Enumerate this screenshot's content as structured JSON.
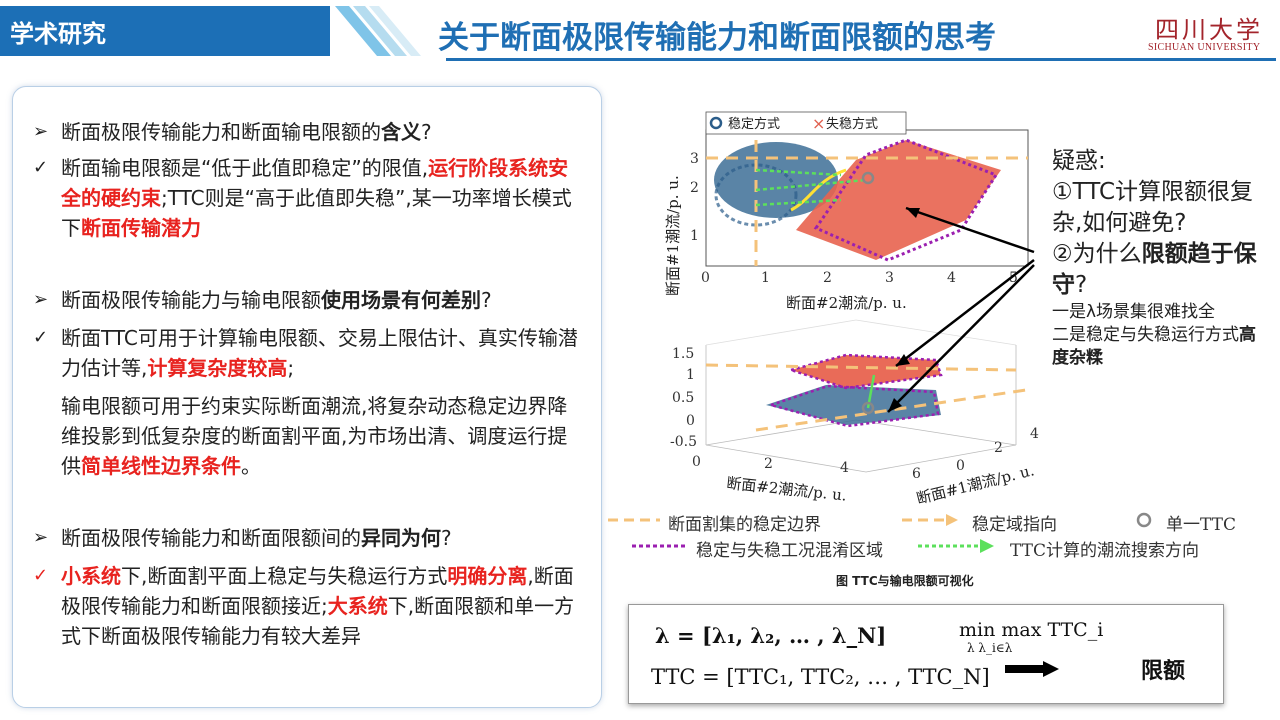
{
  "header": {
    "tag": "学术研究",
    "title": "关于断面极限传输能力和断面限额的思考",
    "logo_cn": "四川大学",
    "logo_en": "SICHUAN UNIVERSITY"
  },
  "left": {
    "b1_pre": "断面极限传输能力和断面输电限额的",
    "b1_bold": "含义",
    "b1_post": "?",
    "c1_pre": "断面输电限额是“低于此值即稳定”的限值,",
    "c1_red1": "运行阶段系统安全的硬约束",
    "c1_mid": ";TTC则是“高于此值即失稳”,某一功率增长模式下",
    "c1_red2": "断面传输潜力",
    "b2_pre": "断面极限传输能力与输电限额",
    "b2_bold": "使用场景有何差别",
    "b2_post": "?",
    "c2_pre": "断面TTC可用于计算输电限额、交易上限估计、真实传输潜力估计等,",
    "c2_red": "计算复杂度较高",
    "c2_post": ";",
    "p2_pre": "输电限额可用于约束实际断面潮流,将复杂动态稳定边界降维投影到低复杂度的断面割平面,为市场出清、调度运行提供",
    "p2_red": "简单线性边界条件",
    "p2_post": "。",
    "b3_pre": "断面极限传输能力和断面限额间的",
    "b3_bold": "异同为何",
    "b3_post": "?",
    "c3_red1": "小系统",
    "c3_mid1": "下,断面割平面上稳定与失稳运行方式",
    "c3_red2": "明确分离",
    "c3_mid2": ",断面极限传输能力和断面限额接近;",
    "c3_red3": "大系统",
    "c3_post": "下,断面限额和单一方式下断面极限传输能力有较大差异"
  },
  "figure": {
    "legend_top_stable": "稳定方式",
    "legend_top_unstable": "失稳方式",
    "top_ylabel": "断面#1潮流/p. u.",
    "top_xlabel": "断面#2潮流/p. u.",
    "top_xticks": [
      "0",
      "1",
      "2",
      "3",
      "4",
      "5"
    ],
    "top_yticks": [
      "1",
      "2",
      "3"
    ],
    "bottom_zticks": [
      "1.5",
      "1",
      "0.5",
      "0",
      "-0.5"
    ],
    "bottom_xticks": [
      "0",
      "2",
      "4",
      "6"
    ],
    "bottom_yticks": [
      "0",
      "2",
      "4"
    ],
    "bottom_xlabel": "断面#2潮流/p. u.",
    "bottom_ylabel": "断面#1潮流/p. u.",
    "caption": "图 TTC与输电限额可视化"
  },
  "legend": {
    "boundary": "断面割集的稳定边界",
    "direction": "稳定域指向",
    "single": "单一TTC",
    "mixed": "稳定与失稳工况混淆区域",
    "search": "TTC计算的潮流搜索方向"
  },
  "right": {
    "q": "疑惑:",
    "q1": "①TTC计算限额很复杂,如何避免?",
    "q2_pre": "②为什么",
    "q2_bold": "限额趋于保守",
    "q2_post": "?",
    "a1": "一是λ场景集很难找全",
    "a2_pre": "二是稳定与失稳运行方式",
    "a2_bold": "高度杂糅"
  },
  "formula": {
    "lambda_def": "λ = [λ₁, λ₂, … , λ_N]",
    "ttc_def": "TTC = [TTC₁, TTC₂, … , TTC_N]",
    "minmax": "min max TTC_i",
    "sub": "λ   λ_i∈λ",
    "limit": "限额"
  },
  "colors": {
    "blue": "#1f6fb4",
    "red": "#e8231f",
    "stable": "#2b5d8a",
    "unstable": "#e0604f",
    "purple": "#9b1fb0",
    "orange": "#f4c27a",
    "green": "#5ce05c"
  }
}
